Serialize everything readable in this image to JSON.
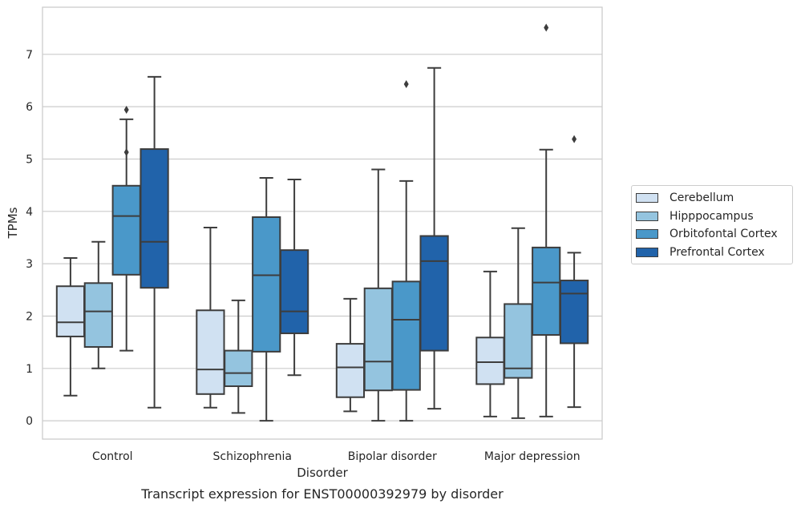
{
  "chart_data": {
    "type": "box",
    "title": "",
    "caption": "Transcript expression for ENST00000392979 by disorder",
    "xlabel": "Disorder",
    "ylabel": "TPMs",
    "ylim": [
      -0.35,
      7.9
    ],
    "yticks": [
      0,
      1,
      2,
      3,
      4,
      5,
      6,
      7
    ],
    "grid": "horizontal",
    "legend_position": "right",
    "categories": [
      "Control",
      "Schizophrenia",
      "Bipolar disorder",
      "Major depression"
    ],
    "series": [
      {
        "name": "Cerebellum",
        "color": "#d0e1f2",
        "boxes": [
          {
            "whislo": 0.48,
            "q1": 1.61,
            "med": 1.88,
            "q3": 2.57,
            "whishi": 3.11,
            "fliers": []
          },
          {
            "whislo": 0.25,
            "q1": 0.51,
            "med": 0.98,
            "q3": 2.11,
            "whishi": 3.69,
            "fliers": []
          },
          {
            "whislo": 0.18,
            "q1": 0.45,
            "med": 1.02,
            "q3": 1.47,
            "whishi": 2.33,
            "fliers": []
          },
          {
            "whislo": 0.08,
            "q1": 0.7,
            "med": 1.12,
            "q3": 1.59,
            "whishi": 2.85,
            "fliers": []
          }
        ]
      },
      {
        "name": "Hipppocampus",
        "color": "#94c4df",
        "boxes": [
          {
            "whislo": 1.0,
            "q1": 1.41,
            "med": 2.09,
            "q3": 2.63,
            "whishi": 3.42,
            "fliers": []
          },
          {
            "whislo": 0.15,
            "q1": 0.66,
            "med": 0.91,
            "q3": 1.34,
            "whishi": 2.3,
            "fliers": []
          },
          {
            "whislo": 0.0,
            "q1": 0.58,
            "med": 1.13,
            "q3": 2.53,
            "whishi": 4.8,
            "fliers": []
          },
          {
            "whislo": 0.05,
            "q1": 0.82,
            "med": 1.0,
            "q3": 2.23,
            "whishi": 3.68,
            "fliers": []
          }
        ]
      },
      {
        "name": "Orbitofontal Cortex",
        "color": "#4a98c9",
        "boxes": [
          {
            "whislo": 1.34,
            "q1": 2.79,
            "med": 3.91,
            "q3": 4.49,
            "whishi": 5.76,
            "fliers": [
              5.13,
              5.94
            ]
          },
          {
            "whislo": 0.0,
            "q1": 1.32,
            "med": 2.78,
            "q3": 3.89,
            "whishi": 4.64,
            "fliers": []
          },
          {
            "whislo": 0.0,
            "q1": 0.59,
            "med": 1.93,
            "q3": 2.66,
            "whishi": 4.58,
            "fliers": [
              6.43
            ]
          },
          {
            "whislo": 0.08,
            "q1": 1.64,
            "med": 2.64,
            "q3": 3.31,
            "whishi": 5.18,
            "fliers": [
              7.51
            ]
          }
        ]
      },
      {
        "name": "Prefrontal Cortex",
        "color": "#2163aa",
        "boxes": [
          {
            "whislo": 0.25,
            "q1": 2.54,
            "med": 3.42,
            "q3": 5.19,
            "whishi": 6.57,
            "fliers": []
          },
          {
            "whislo": 0.87,
            "q1": 1.67,
            "med": 2.09,
            "q3": 3.26,
            "whishi": 4.61,
            "fliers": []
          },
          {
            "whislo": 0.23,
            "q1": 1.34,
            "med": 3.05,
            "q3": 3.53,
            "whishi": 6.74,
            "fliers": []
          },
          {
            "whislo": 0.26,
            "q1": 1.48,
            "med": 2.43,
            "q3": 2.68,
            "whishi": 3.21,
            "fliers": [
              5.38
            ]
          }
        ]
      }
    ]
  }
}
